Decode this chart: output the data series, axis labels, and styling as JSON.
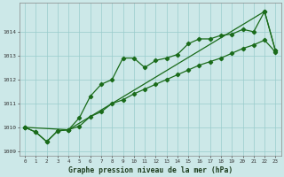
{
  "xlabel": "Graphe pression niveau de la mer (hPa)",
  "bg_color": "#cce8e8",
  "grid_color": "#99cccc",
  "line_color": "#1a6b1a",
  "x_ticks": [
    0,
    1,
    2,
    3,
    4,
    5,
    6,
    7,
    8,
    9,
    10,
    11,
    12,
    13,
    14,
    15,
    16,
    17,
    18,
    19,
    20,
    21,
    22,
    23
  ],
  "xlim": [
    -0.5,
    23.5
  ],
  "ylim": [
    1008.8,
    1015.2
  ],
  "yticks": [
    1009,
    1010,
    1011,
    1012,
    1013,
    1014
  ],
  "line1_x": [
    0,
    1,
    2,
    3,
    4,
    5,
    6,
    7,
    8,
    9,
    10,
    11,
    12,
    13,
    14,
    15,
    16,
    17,
    18,
    19,
    20,
    21,
    22,
    23
  ],
  "line1_y": [
    1010.0,
    1009.8,
    1009.4,
    1009.85,
    1009.9,
    1010.4,
    1011.3,
    1011.8,
    1012.0,
    1012.9,
    1012.9,
    1012.5,
    1012.8,
    1012.9,
    1013.05,
    1013.5,
    1013.7,
    1013.7,
    1013.85,
    1013.9,
    1014.1,
    1014.0,
    1014.85,
    1013.2
  ],
  "line2_x": [
    0,
    1,
    2,
    3,
    4,
    5,
    6,
    7,
    8,
    9,
    10,
    11,
    12,
    13,
    14,
    15,
    16,
    17,
    18,
    19,
    20,
    21,
    22,
    23
  ],
  "line2_y": [
    1010.0,
    1009.8,
    1009.4,
    1009.85,
    1009.9,
    1010.05,
    1010.45,
    1010.65,
    1011.0,
    1011.15,
    1011.4,
    1011.6,
    1011.8,
    1012.0,
    1012.2,
    1012.4,
    1012.6,
    1012.75,
    1012.9,
    1013.1,
    1013.3,
    1013.45,
    1013.65,
    1013.15
  ],
  "line3_x": [
    0,
    4,
    22,
    23
  ],
  "line3_y": [
    1010.0,
    1009.9,
    1014.85,
    1013.2
  ],
  "markersize": 2.2,
  "linewidth": 0.9,
  "tick_fontsize": 4.2,
  "xlabel_fontsize": 5.8
}
